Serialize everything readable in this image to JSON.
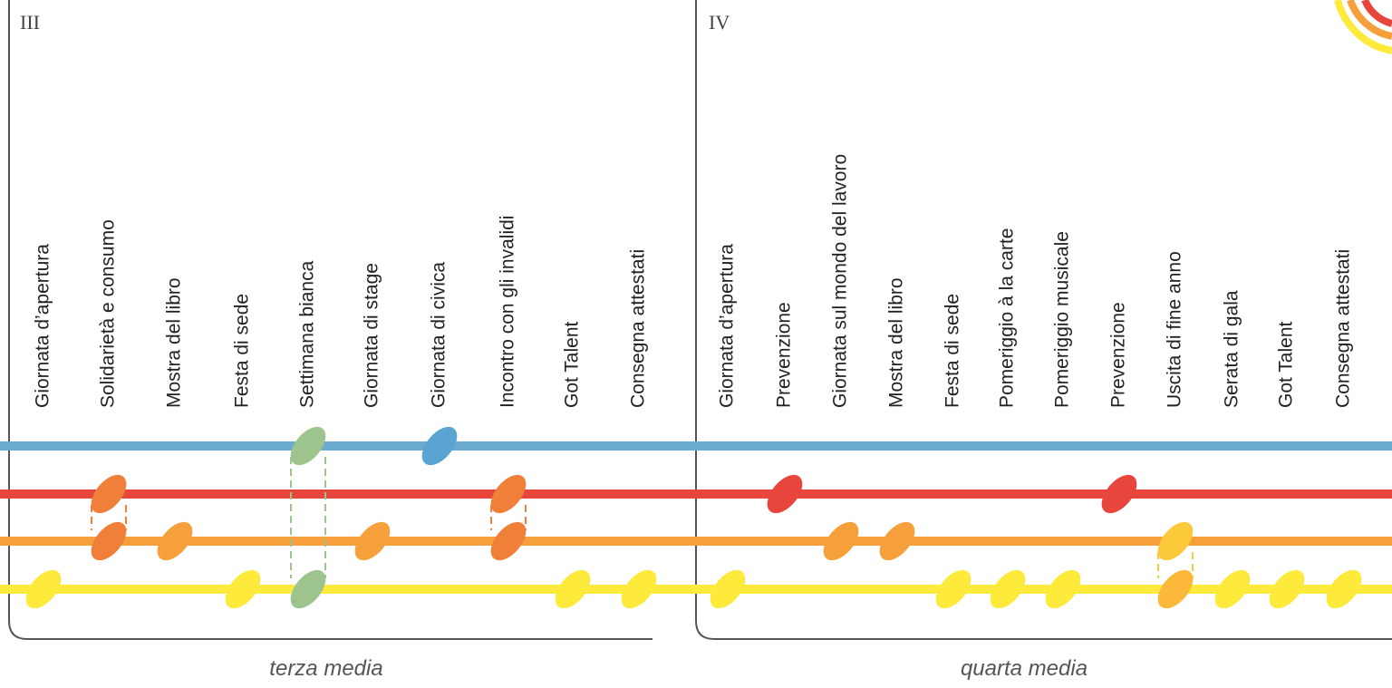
{
  "panels": [
    {
      "numeral": "III",
      "caption": "terza media",
      "events": [
        "Giornata d’apertura",
        "Solidarietà e consumo",
        "Mostra del libro",
        "Festa di sede",
        "Settimana bianca",
        "Giornata di stage",
        "Giornata di civica",
        "Incontro con gli invalidi",
        "Got Talent",
        "Consegna attestati"
      ]
    },
    {
      "numeral": "IV",
      "caption": "quarta media",
      "events": [
        "Giornata d’apertura",
        "Prevenzione",
        "Giornata sul mondo del lavoro",
        "Mostra del libro",
        "Festa di sede",
        "Pomeriggio à la carte",
        "Pomeriggio musicale",
        "Prevenzione",
        "Uscita di fine anno",
        "Serata di gala",
        "Got Talent",
        "Consegna attestati"
      ]
    }
  ]
}
